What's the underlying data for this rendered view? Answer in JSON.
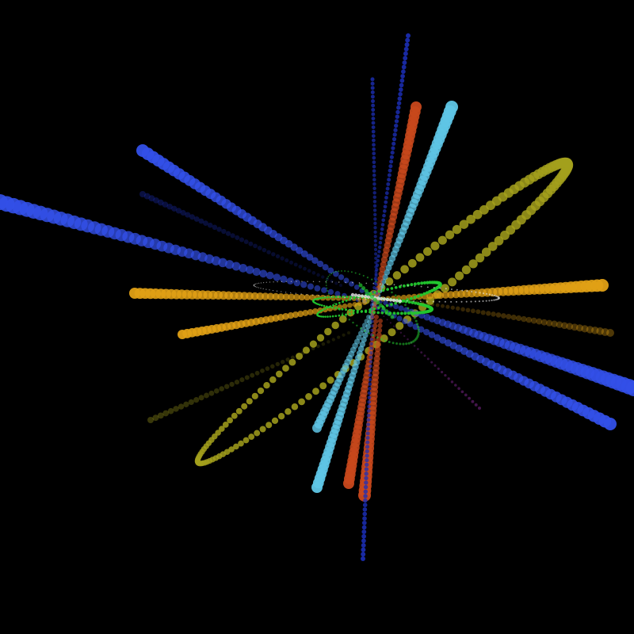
{
  "scene": {
    "background": "#000000",
    "description_colors": {
      "blue": "#3350e8",
      "deep_blue": "#1c2fb8",
      "light_blue": "#5fc6e6",
      "orange": "#e0a015",
      "red_orange": "#c8481c",
      "olive": "#a3a01c",
      "green": "#22c82e",
      "white": "#e8e8e8"
    }
  }
}
